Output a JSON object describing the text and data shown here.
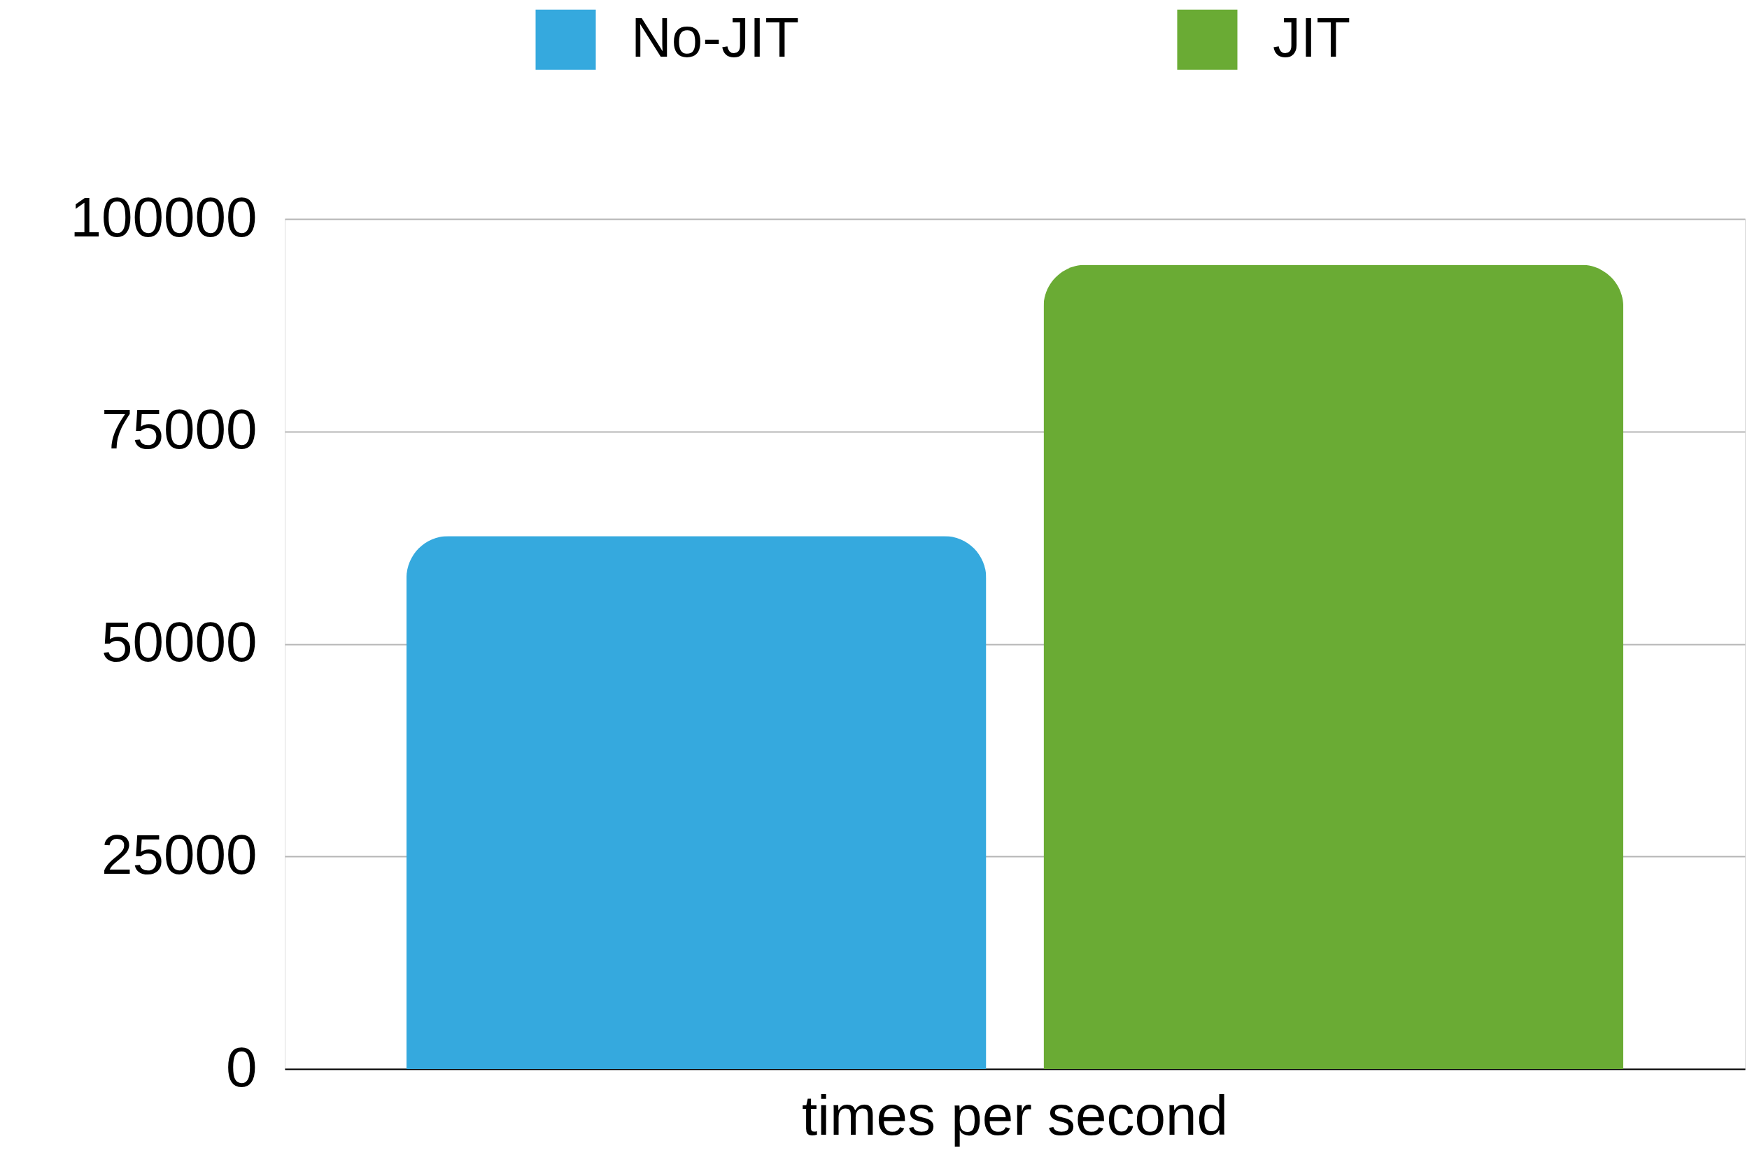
{
  "chart_data": {
    "type": "bar",
    "categories": [
      "times per second"
    ],
    "series": [
      {
        "name": "No-JIT",
        "color": "#35a9de",
        "values": [
          62700
        ]
      },
      {
        "name": "JIT",
        "color": "#6aab34",
        "values": [
          94600
        ]
      }
    ],
    "ylim": [
      0,
      100000
    ],
    "yticks": [
      0,
      25000,
      50000,
      75000,
      100000
    ],
    "grid": "y",
    "legend": "top"
  }
}
